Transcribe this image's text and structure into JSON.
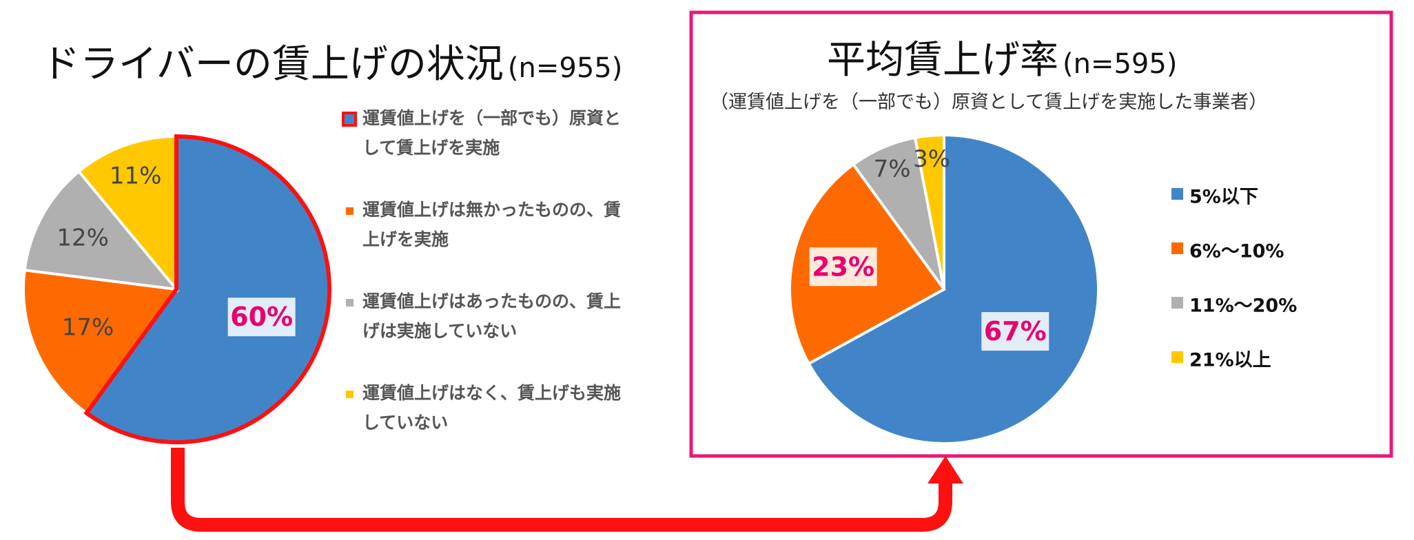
{
  "chart_data": [
    {
      "type": "pie",
      "title": "ドライバーの賃上げの状況",
      "title_suffix": "(n=955)",
      "slices": [
        {
          "label": "運賃値上げを（一部でも）原資として賃上げを実施",
          "legend_lines": [
            "運賃値上げを（一部でも）原資と",
            "して賃上げを実施"
          ],
          "value": 60,
          "value_label": "60%",
          "color": "#4185c8"
        },
        {
          "label": "運賃値上げは無かったものの、賃上げを実施",
          "legend_lines": [
            "運賃値上げは無かったものの、賃",
            "上げを実施"
          ],
          "value": 17,
          "value_label": "17%",
          "color": "#ff6a00"
        },
        {
          "label": "運賃値上げはあったものの、賃上げは実施していない",
          "legend_lines": [
            "運賃値上げはあったものの、賃上",
            "げは実施していない"
          ],
          "value": 12,
          "value_label": "12%",
          "color": "#b0b0b0"
        },
        {
          "label": "運賃値上げはなく、賃上げも実施していない",
          "legend_lines": [
            "運賃値上げはなく、賃上げも実施",
            "していない"
          ],
          "value": 11,
          "value_label": "11%",
          "color": "#ffc800"
        }
      ],
      "highlight_color": "#ff1010",
      "legend_placement": "right"
    },
    {
      "type": "pie",
      "title": "平均賃上げ率",
      "title_suffix": "(n=595)",
      "subtitle": "（運賃値上げを（一部でも）原資として賃上げを実施した事業者）",
      "slices": [
        {
          "label": "5%以下",
          "value": 67,
          "value_label": "67%",
          "color": "#4185c8"
        },
        {
          "label": "6%〜10%",
          "value": 23,
          "value_label": "23%",
          "color": "#ff6a00"
        },
        {
          "label": "11%〜20%",
          "value": 7,
          "value_label": "7%",
          "color": "#b0b0b0"
        },
        {
          "label": "21%以上",
          "value": 3,
          "value_label": "3%",
          "color": "#ffc800"
        }
      ],
      "frame_color": "#e8197a",
      "legend_placement": "right"
    }
  ],
  "connector": {
    "color": "#ff1010"
  }
}
